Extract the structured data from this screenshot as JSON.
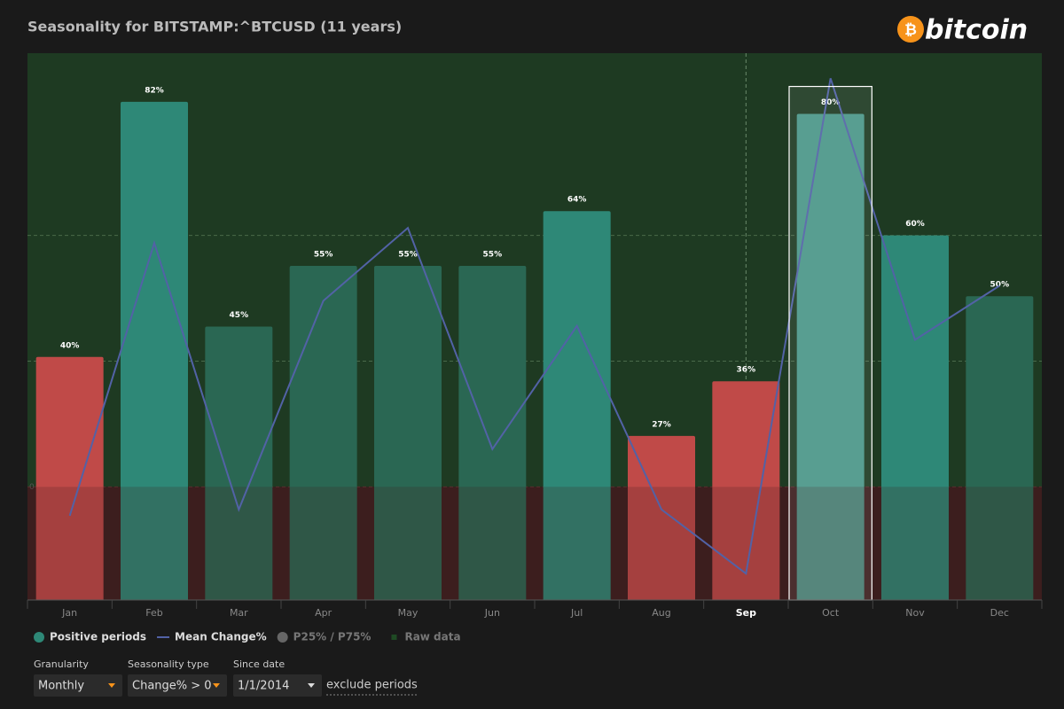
{
  "header": {
    "title": "Seasonality for BITSTAMP:^BTCUSD (11 years)",
    "logo_symbol": "₿",
    "logo_text": "bitcoin"
  },
  "chart_data": {
    "type": "bar",
    "categories": [
      "Jan",
      "Feb",
      "Mar",
      "Apr",
      "May",
      "Jun",
      "Jul",
      "Aug",
      "Sep",
      "Oct",
      "Nov",
      "Dec"
    ],
    "series": [
      {
        "name": "Positive periods",
        "color": "#2e8877",
        "values": [
          40,
          82,
          45,
          55,
          55,
          55,
          64,
          27,
          36,
          80,
          60,
          50
        ],
        "value_labels": [
          "40%",
          "82%",
          "45%",
          "55%",
          "55%",
          "55%",
          "64%",
          "27%",
          "36%",
          "80%",
          "60%",
          "50%"
        ],
        "colors": [
          "#c04a48",
          "#2e8877",
          "#2a6753",
          "#2a6753",
          "#2a6753",
          "#2a6753",
          "#2e8877",
          "#c04a48",
          "#c04a48",
          "#4a9688",
          "#2e8877",
          "#2a6753"
        ]
      },
      {
        "name": "Mean Change%",
        "color": "#5262a6",
        "axis": "y2",
        "values": [
          -2.3,
          19.4,
          -1.8,
          14.8,
          20.6,
          3.0,
          12.8,
          -1.8,
          -6.9,
          32.5,
          11.7,
          16.0
        ]
      }
    ],
    "legend_extra": [
      {
        "name": "P25% / P75%",
        "color": "#666666"
      },
      {
        "name": "Raw data",
        "color": "#1f4a24"
      }
    ],
    "ylim": [
      0,
      90
    ],
    "y2lim": [
      -9,
      34.5
    ],
    "y2ticks": [
      0
    ],
    "y2grid_lines": [
      10,
      20
    ],
    "positive_zone_color": "#1e3a22",
    "negative_zone_color": "#3a1e1e"
  },
  "controls": [
    {
      "label": "Granularity",
      "value": "Monthly"
    },
    {
      "label": "Seasonality type",
      "value": "Change% > 0"
    },
    {
      "label": "Since date",
      "value": "1/1/2014"
    }
  ],
  "link": "exclude periods"
}
